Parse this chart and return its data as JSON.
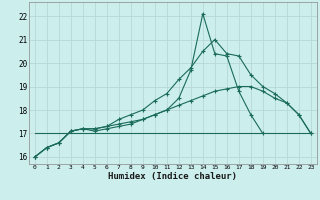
{
  "xlabel": "Humidex (Indice chaleur)",
  "bg_color": "#cceeed",
  "grid_color": "#b8d8d8",
  "line_color": "#1a6b5a",
  "xlim": [
    -0.5,
    23.5
  ],
  "ylim": [
    15.7,
    22.6
  ],
  "yticks": [
    16,
    17,
    18,
    19,
    20,
    21,
    22
  ],
  "xticks": [
    0,
    1,
    2,
    3,
    4,
    5,
    6,
    7,
    8,
    9,
    10,
    11,
    12,
    13,
    14,
    15,
    16,
    17,
    18,
    19,
    20,
    21,
    22,
    23
  ],
  "series": [
    {
      "x": [
        0,
        1,
        2,
        3,
        4,
        5,
        6,
        7,
        8,
        9,
        10,
        11,
        12,
        13,
        14,
        15,
        16,
        17,
        18,
        19,
        20,
        21,
        22,
        23
      ],
      "y": [
        16.0,
        16.4,
        16.6,
        17.1,
        17.2,
        17.1,
        17.2,
        17.3,
        17.4,
        17.6,
        17.8,
        18.0,
        18.5,
        19.7,
        22.1,
        20.4,
        20.3,
        18.8,
        17.8,
        17.0,
        null,
        null,
        null,
        null
      ],
      "has_markers": true
    },
    {
      "x": [
        0,
        1,
        2,
        3,
        4,
        5,
        6,
        7,
        8,
        9,
        10,
        11,
        12,
        13,
        14,
        15,
        16,
        17,
        18,
        19,
        20,
        21,
        22,
        23
      ],
      "y": [
        16.0,
        16.4,
        16.6,
        17.1,
        17.2,
        17.2,
        17.3,
        17.6,
        17.8,
        18.0,
        18.4,
        18.7,
        19.3,
        19.8,
        20.5,
        21.0,
        20.4,
        20.3,
        19.5,
        19.0,
        18.7,
        18.3,
        17.8,
        17.0
      ],
      "has_markers": true
    },
    {
      "x": [
        0,
        1,
        2,
        3,
        4,
        5,
        6,
        7,
        8,
        9,
        10,
        11,
        12,
        13,
        14,
        15,
        16,
        17,
        18,
        19,
        20,
        21,
        22,
        23
      ],
      "y": [
        16.0,
        16.4,
        16.6,
        17.1,
        17.2,
        17.2,
        17.3,
        17.4,
        17.5,
        17.6,
        17.8,
        18.0,
        18.2,
        18.4,
        18.6,
        18.8,
        18.9,
        19.0,
        19.0,
        18.8,
        18.5,
        18.3,
        17.8,
        17.0
      ],
      "has_markers": true
    },
    {
      "x": [
        0,
        23
      ],
      "y": [
        17.0,
        17.0
      ],
      "has_markers": false
    }
  ]
}
